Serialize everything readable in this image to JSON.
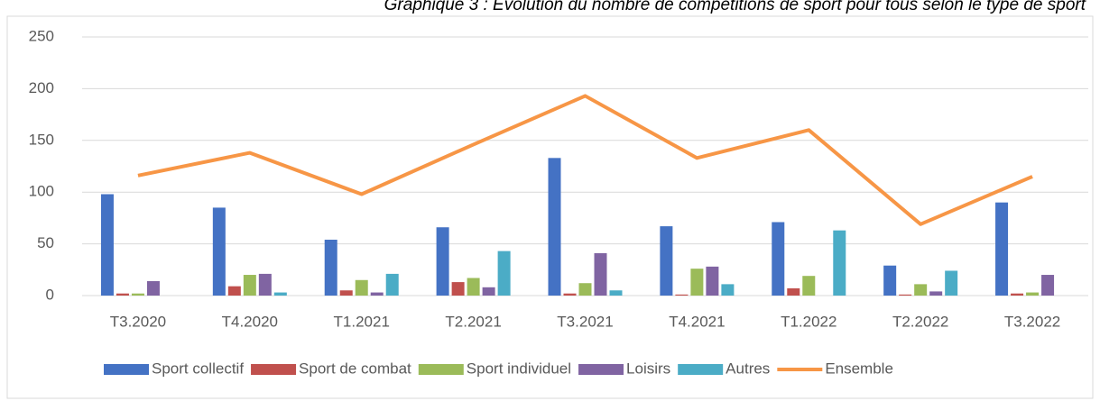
{
  "chart_data": {
    "type": "bar",
    "title": "Graphique 3 : Évolution du nombre de compétitions de sport pour tous selon le type de sport",
    "categories": [
      "T3.2020",
      "T4.2020",
      "T1.2021",
      "T2.2021",
      "T3.2021",
      "T4.2021",
      "T1.2022",
      "T2.2022",
      "T3.2022"
    ],
    "series": [
      {
        "name": "Sport collectif",
        "color": "#4472c4",
        "values": [
          98,
          85,
          54,
          66,
          133,
          67,
          71,
          29,
          90
        ]
      },
      {
        "name": "Sport de combat",
        "color": "#c0504d",
        "values": [
          2,
          9,
          5,
          13,
          2,
          1,
          7,
          1,
          2
        ]
      },
      {
        "name": "Sport individuel",
        "color": "#9bbb59",
        "values": [
          2,
          20,
          15,
          17,
          12,
          26,
          19,
          11,
          3
        ]
      },
      {
        "name": "Loisirs",
        "color": "#8064a2",
        "values": [
          14,
          21,
          3,
          8,
          41,
          28,
          0,
          4,
          20
        ]
      },
      {
        "name": "Autres",
        "color": "#4bacc6",
        "values": [
          0,
          3,
          21,
          43,
          5,
          11,
          63,
          24,
          0
        ]
      },
      {
        "name": "Ensemble",
        "color": "#f79646",
        "type": "line",
        "values": [
          116,
          138,
          98,
          146,
          193,
          133,
          160,
          69,
          115
        ]
      }
    ],
    "ylim": [
      0,
      250
    ],
    "yticks": [
      0,
      50,
      100,
      150,
      200,
      250
    ],
    "grid": true,
    "legend": "bottom"
  }
}
